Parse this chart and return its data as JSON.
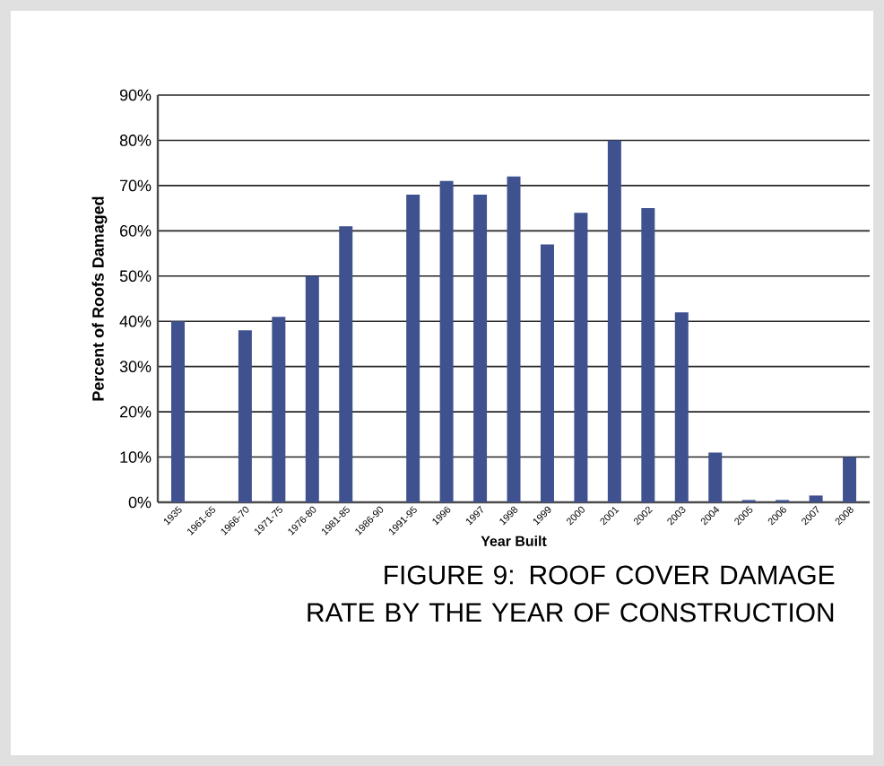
{
  "chart_data": {
    "type": "bar",
    "title": "FIGURE 9: ROOF COVER DAMAGE RATE BY THE YEAR OF CONSTRUCTION",
    "xlabel": "Year Built",
    "ylabel": "Percent of Roofs Damaged",
    "categories": [
      "1935",
      "1961-65",
      "1966-70",
      "1971-75",
      "1976-80",
      "1981-85",
      "1986-90",
      "1991-95",
      "1996",
      "1997",
      "1998",
      "1999",
      "2000",
      "2001",
      "2002",
      "2003",
      "2004",
      "2005",
      "2006",
      "2007",
      "2008"
    ],
    "values": [
      40,
      0,
      38,
      41,
      50,
      61,
      0,
      68,
      71,
      68,
      72,
      57,
      64,
      80,
      65,
      42,
      11,
      0.5,
      0.5,
      1.5,
      10
    ],
    "color": "#3f528f",
    "ylim": [
      0,
      90
    ],
    "yticks": [
      {
        "value": 0,
        "label": "0%"
      },
      {
        "value": 10,
        "label": "10%"
      },
      {
        "value": 20,
        "label": "20%"
      },
      {
        "value": 30,
        "label": "30%"
      },
      {
        "value": 40,
        "label": "40%"
      },
      {
        "value": 50,
        "label": "50%"
      },
      {
        "value": 60,
        "label": "60%"
      },
      {
        "value": 70,
        "label": "70%"
      },
      {
        "value": 80,
        "label": "80%"
      },
      {
        "value": 90,
        "label": "90%"
      }
    ],
    "grid": "y"
  }
}
